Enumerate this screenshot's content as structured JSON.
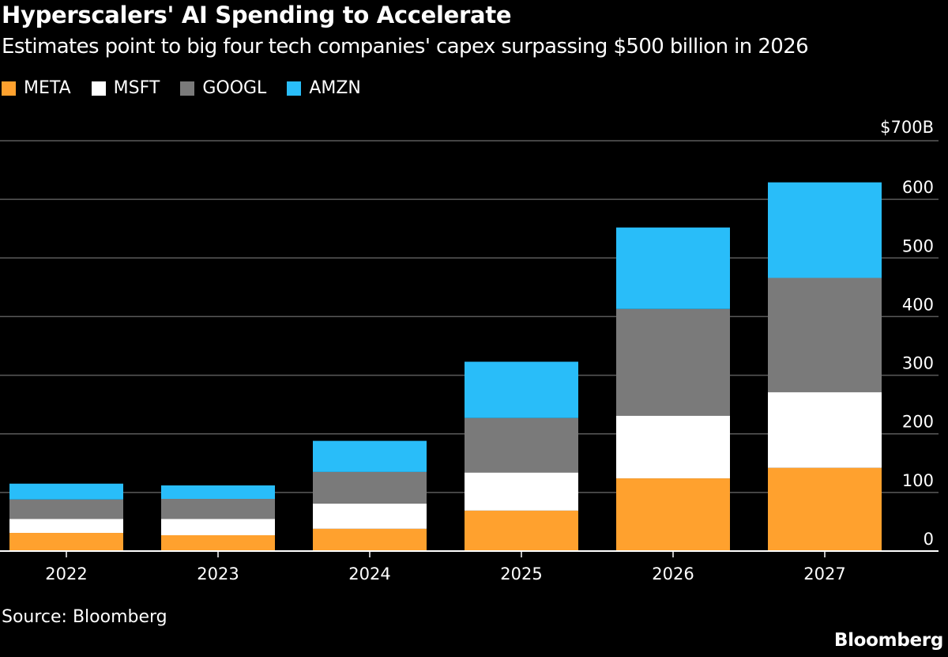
{
  "title": "Hyperscalers' AI Spending to Accelerate",
  "subtitle": "Estimates point to big four tech companies' capex surpassing $500 billion in 2026",
  "source": "Source: Bloomberg",
  "logo": "Bloomberg",
  "chart_data": {
    "type": "bar",
    "stacked": true,
    "categories": [
      "2022",
      "2023",
      "2024",
      "2025",
      "2026",
      "2027"
    ],
    "series": [
      {
        "name": "META",
        "color": "#ffa12e",
        "values": [
          31,
          27,
          38,
          69,
          124,
          142
        ]
      },
      {
        "name": "MSFT",
        "color": "#ffffff",
        "values": [
          24,
          28,
          43,
          65,
          107,
          129
        ]
      },
      {
        "name": "GOOGL",
        "color": "#7a7a7a",
        "values": [
          33,
          34,
          54,
          93,
          182,
          195
        ]
      },
      {
        "name": "AMZN",
        "color": "#29bdf9",
        "values": [
          27,
          23,
          53,
          96,
          139,
          163
        ]
      }
    ],
    "ylim": [
      0,
      700
    ],
    "yticks": [
      0,
      100,
      200,
      300,
      400,
      500,
      600,
      700
    ],
    "ytick_labels": [
      "0",
      "100",
      "200",
      "300",
      "400",
      "500",
      "600",
      "$700B"
    ],
    "y_axis_position": "right",
    "grid": true,
    "legend_placement": "top-left"
  }
}
